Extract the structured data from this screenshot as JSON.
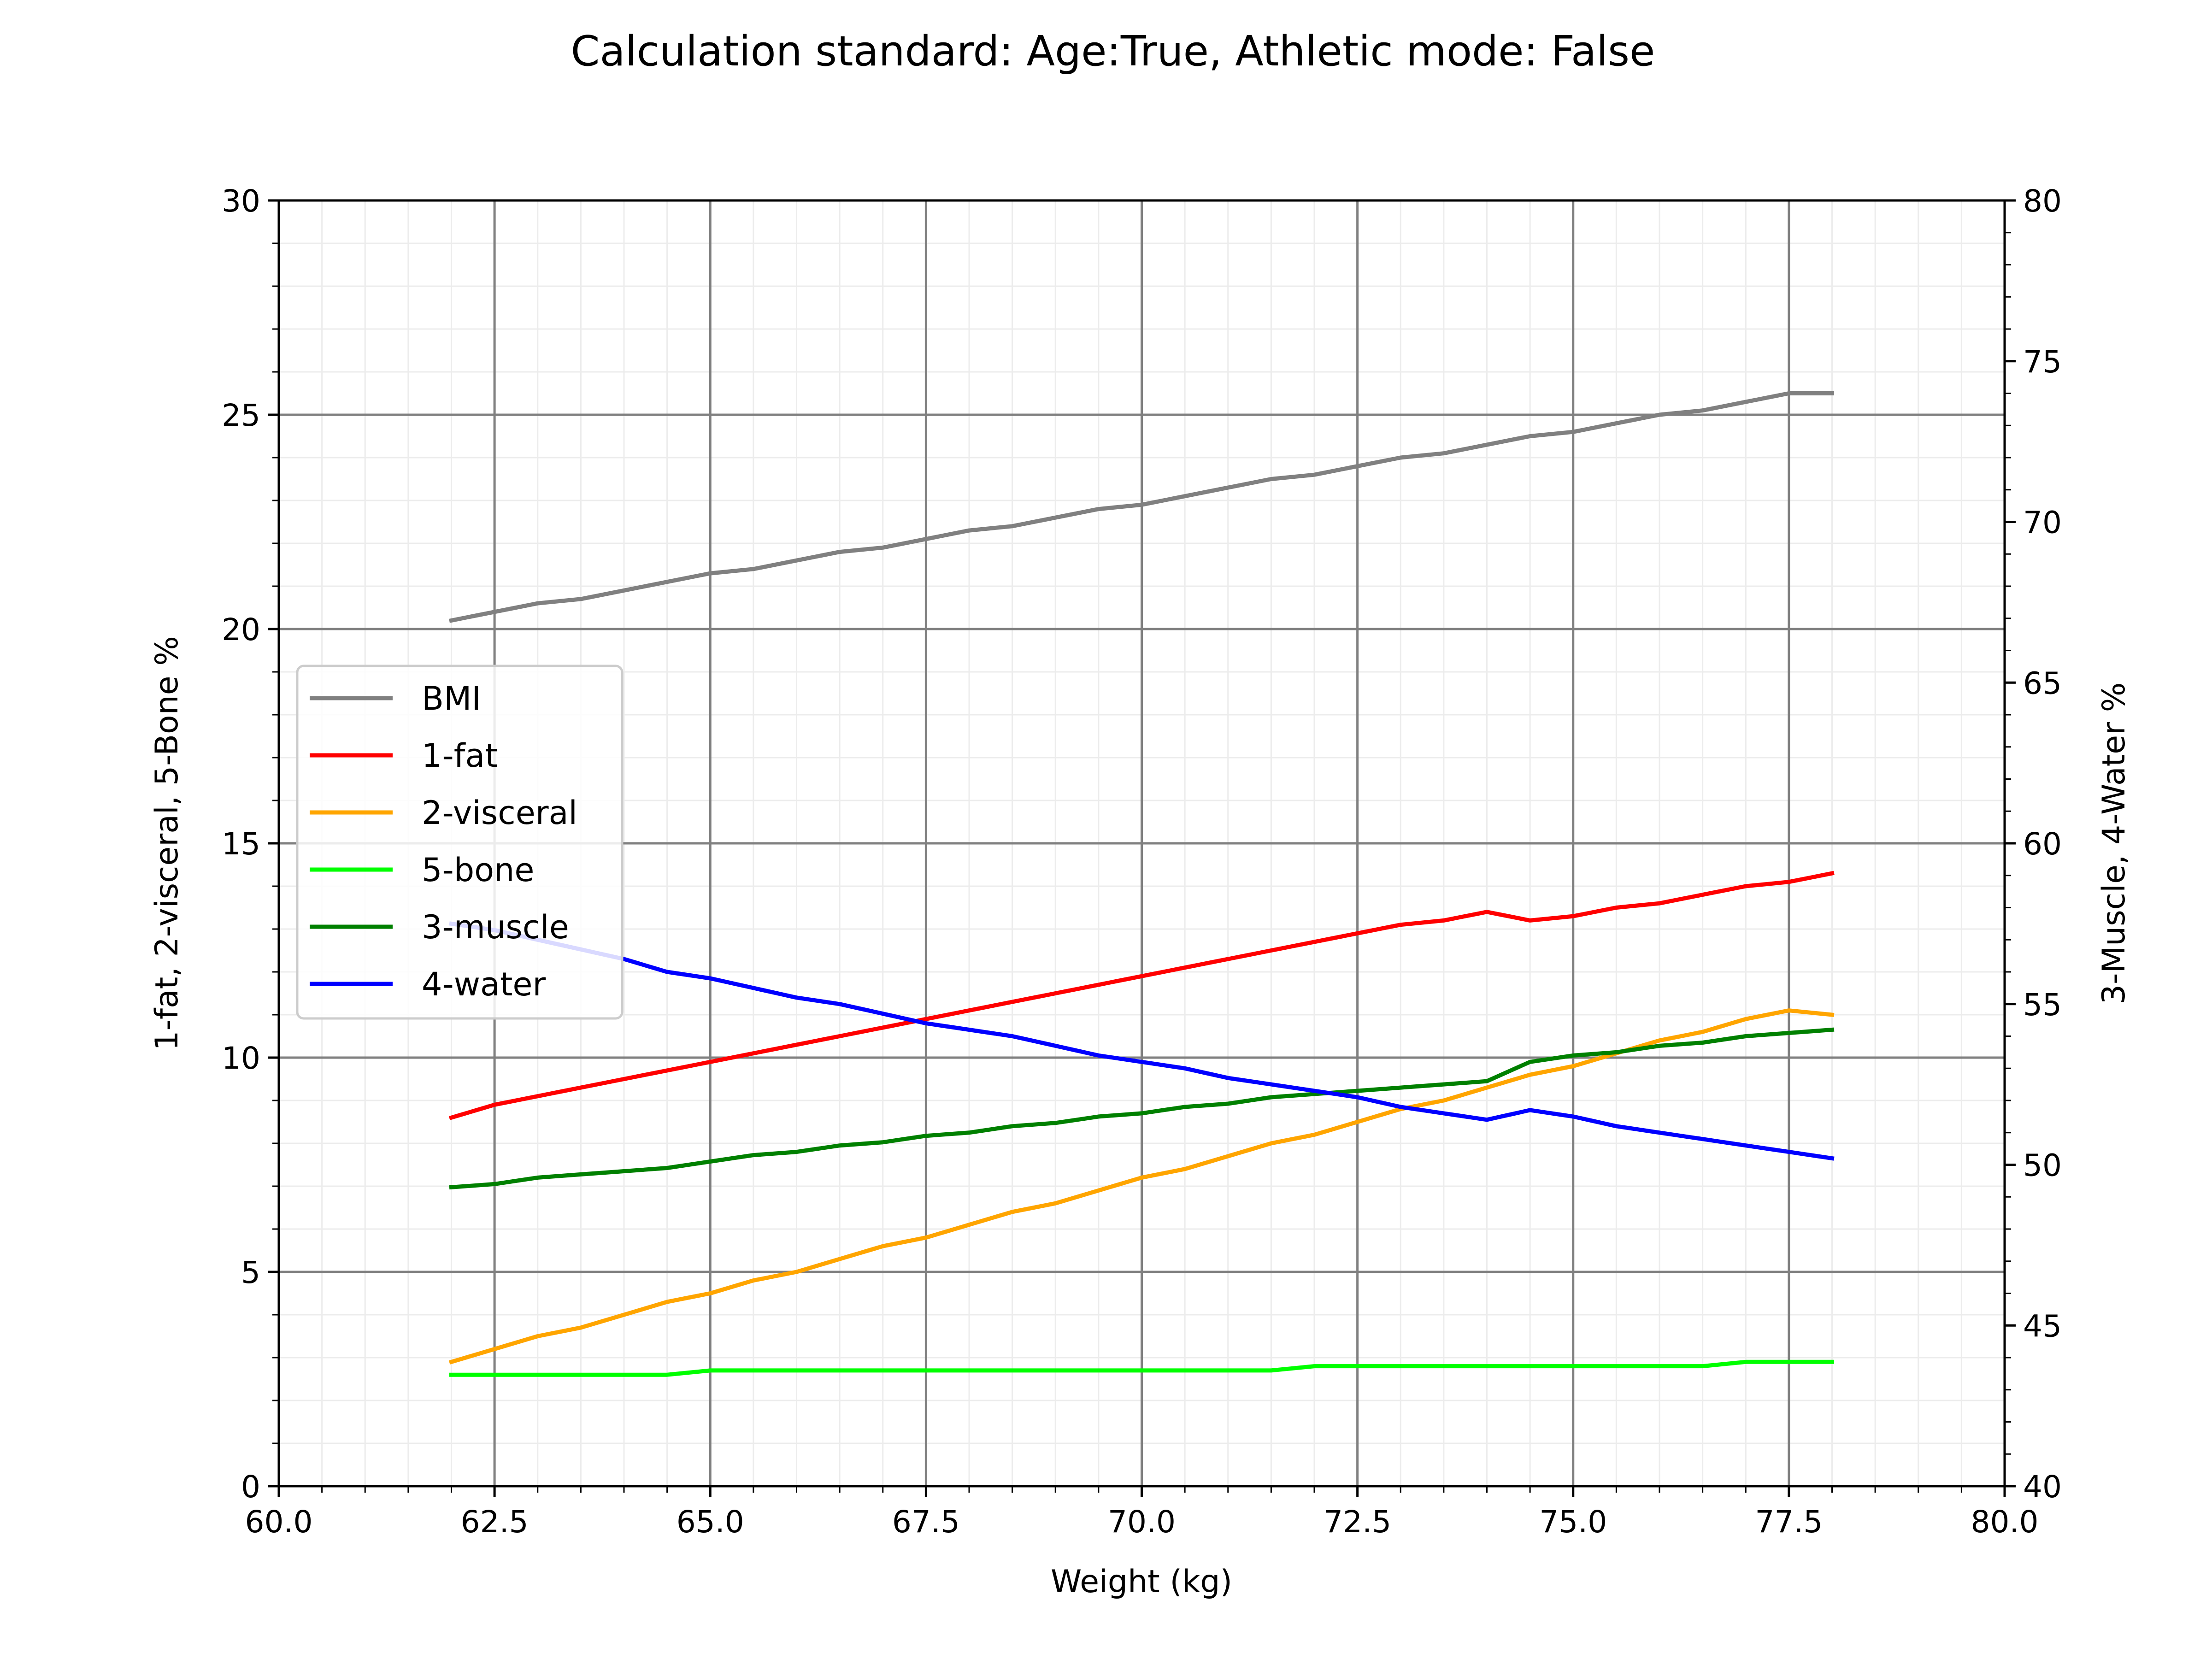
{
  "chart_data": {
    "type": "line",
    "title": "Calculation standard: Age:True, Athletic mode: False",
    "xlabel": "Weight (kg)",
    "ylabel_left": "1-fat, 2-visceral, 5-Bone %",
    "ylabel_right": "3-Muscle, 4-Water %",
    "xlim": [
      60,
      80
    ],
    "ylim_left": [
      0,
      30
    ],
    "ylim_right": [
      40,
      80
    ],
    "x_ticks": [
      "60.0",
      "62.5",
      "65.0",
      "67.5",
      "70.0",
      "72.5",
      "75.0",
      "77.5",
      "80.0"
    ],
    "y_left_ticks": [
      "0",
      "5",
      "10",
      "15",
      "20",
      "25",
      "30"
    ],
    "y_right_ticks": [
      "40",
      "45",
      "50",
      "55",
      "60",
      "65",
      "70",
      "75",
      "80"
    ],
    "grid": true,
    "legend_position": "center-left",
    "x": [
      62,
      62.5,
      63,
      63.5,
      64,
      64.5,
      65,
      65.5,
      66,
      66.5,
      67,
      67.5,
      68,
      68.5,
      69,
      69.5,
      70,
      70.5,
      71,
      71.5,
      72,
      72.5,
      73,
      73.5,
      74,
      74.5,
      75,
      75.5,
      76,
      76.5,
      77,
      77.5,
      78
    ],
    "series": [
      {
        "name": "BMI",
        "axis": "left",
        "color": "#808080",
        "values": [
          20.2,
          20.4,
          20.6,
          20.7,
          20.9,
          21.1,
          21.3,
          21.4,
          21.6,
          21.8,
          21.9,
          22.1,
          22.3,
          22.4,
          22.6,
          22.8,
          22.9,
          23.1,
          23.3,
          23.5,
          23.6,
          23.8,
          24.0,
          24.1,
          24.3,
          24.5,
          24.6,
          24.8,
          25.0,
          25.1,
          25.3,
          25.5,
          25.5
        ]
      },
      {
        "name": "1-fat",
        "axis": "left",
        "color": "#ff0000",
        "values": [
          8.6,
          8.9,
          9.1,
          9.3,
          9.5,
          9.7,
          9.9,
          10.1,
          10.3,
          10.5,
          10.7,
          10.9,
          11.1,
          11.3,
          11.5,
          11.7,
          11.9,
          12.1,
          12.3,
          12.5,
          12.7,
          12.9,
          13.1,
          13.2,
          13.4,
          13.2,
          13.3,
          13.5,
          13.6,
          13.8,
          14.0,
          14.1,
          14.3
        ]
      },
      {
        "name": "2-visceral",
        "axis": "left",
        "color": "#ffa500",
        "values": [
          2.9,
          3.2,
          3.5,
          3.7,
          4.0,
          4.3,
          4.5,
          4.8,
          5.0,
          5.3,
          5.6,
          5.8,
          6.1,
          6.4,
          6.6,
          6.9,
          7.2,
          7.4,
          7.7,
          8.0,
          8.2,
          8.5,
          8.8,
          9.0,
          9.3,
          9.6,
          9.8,
          10.1,
          10.4,
          10.6,
          10.9,
          11.1,
          11.0
        ]
      },
      {
        "name": "5-bone",
        "axis": "left",
        "color": "#00ff00",
        "values": [
          2.6,
          2.6,
          2.6,
          2.6,
          2.6,
          2.6,
          2.7,
          2.7,
          2.7,
          2.7,
          2.7,
          2.7,
          2.7,
          2.7,
          2.7,
          2.7,
          2.7,
          2.7,
          2.7,
          2.7,
          2.8,
          2.8,
          2.8,
          2.8,
          2.8,
          2.8,
          2.8,
          2.8,
          2.8,
          2.8,
          2.9,
          2.9,
          2.9
        ]
      },
      {
        "name": "3-muscle",
        "axis": "right",
        "color": "#008000",
        "values": [
          49.3,
          49.4,
          49.6,
          49.7,
          49.8,
          49.9,
          50.1,
          50.3,
          50.4,
          50.6,
          50.7,
          50.9,
          51.0,
          51.2,
          51.3,
          51.5,
          51.6,
          51.8,
          51.9,
          52.1,
          52.2,
          52.3,
          52.4,
          52.5,
          52.6,
          53.2,
          53.4,
          53.5,
          53.7,
          53.8,
          54.0,
          54.1,
          54.2
        ]
      },
      {
        "name": "4-water",
        "axis": "right",
        "color": "#0000ff",
        "values": [
          57.5,
          57.3,
          57.0,
          56.7,
          56.4,
          56.0,
          55.8,
          55.5,
          55.2,
          55.0,
          54.7,
          54.4,
          54.2,
          54.0,
          53.7,
          53.4,
          53.2,
          53.0,
          52.7,
          52.5,
          52.3,
          52.1,
          51.8,
          51.6,
          51.4,
          51.7,
          51.5,
          51.2,
          51.0,
          50.8,
          50.6,
          50.4,
          50.2
        ]
      }
    ]
  }
}
